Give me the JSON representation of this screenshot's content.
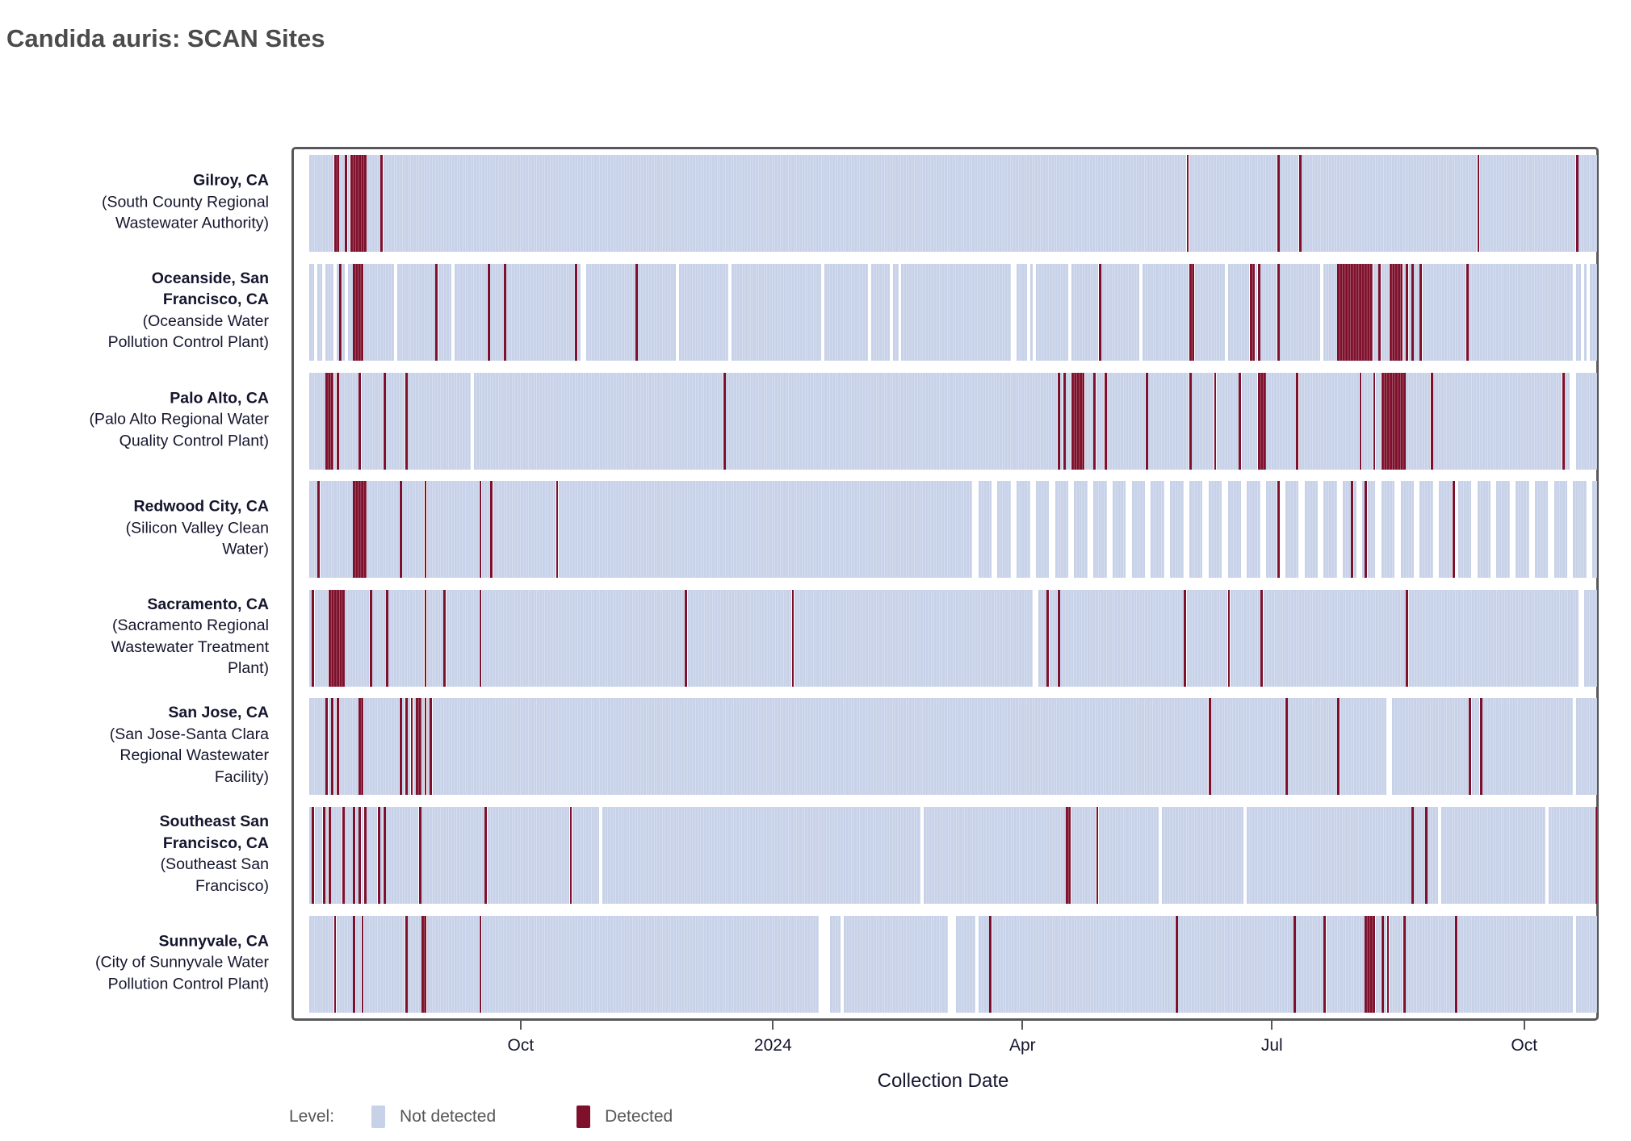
{
  "title": "Candida auris: SCAN Sites",
  "legend": {
    "label": "Level:",
    "items": [
      {
        "label": "Not detected",
        "color": "#c7d1e8"
      },
      {
        "label": "Detected",
        "color": "#7e102c"
      }
    ]
  },
  "colors": {
    "not_detected": "#c7d1e8",
    "detected": "#7e102c",
    "panel_border": "#58585c",
    "label_text": "#15152e",
    "title_text": "#4b4b4b",
    "legend_text": "#565656"
  },
  "chart_data": {
    "type": "heatmap",
    "title": "Candida auris: SCAN Sites",
    "xlabel": "Collection Date",
    "ylabel": "",
    "legend_position": "bottom",
    "x_axis": {
      "start_label_context": "daily samples, mid-July 2023 through late October 2024",
      "days_total": 470,
      "ticks": [
        {
          "label": "Oct",
          "day": 78
        },
        {
          "label": "2024",
          "day": 170
        },
        {
          "label": "Apr",
          "day": 261
        },
        {
          "label": "Jul",
          "day": 352
        },
        {
          "label": "Oct",
          "day": 444
        }
      ]
    },
    "levels": [
      "Not detected",
      "Detected"
    ],
    "sites": [
      {
        "city_lines": [
          "Gilroy, CA"
        ],
        "plant_lines": [
          "(South County Regional",
          "Wastewater Authority)"
        ],
        "detected": [
          9,
          10,
          13,
          [
            15,
            20
          ],
          26,
          320,
          353,
          361,
          426,
          462
        ],
        "missing": []
      },
      {
        "city_lines": [
          "Oceanside, San",
          "Francisco, CA"
        ],
        "plant_lines": [
          "(Oceanside Water",
          "Pollution Control Plant)"
        ],
        "detected": [
          11,
          [
            16,
            19
          ],
          46,
          65,
          71,
          97,
          119,
          288,
          [
            321,
            322
          ],
          343,
          344,
          346,
          353,
          [
            375,
            387
          ],
          390,
          [
            394,
            398
          ],
          400,
          402,
          405,
          422
        ],
        "missing": [
          2,
          5,
          9,
          13,
          31,
          52,
          [
            99,
            100
          ],
          134,
          153,
          187,
          204,
          212,
          215,
          [
            256,
            257
          ],
          262,
          264,
          277,
          303,
          334,
          369,
          461,
          464,
          466
        ]
      },
      {
        "city_lines": [
          "Palo Alto, CA"
        ],
        "plant_lines": [
          "(Palo Alto Regional Water",
          "Quality Control Plant)"
        ],
        "detected": [
          [
            6,
            8
          ],
          10,
          18,
          27,
          35,
          151,
          273,
          275,
          [
            278,
            282
          ],
          286,
          290,
          305,
          321,
          330,
          339,
          [
            346,
            348
          ],
          360,
          383,
          388,
          [
            391,
            399
          ],
          409,
          457
        ],
        "missing": [
          59,
          [
            460,
            461
          ]
        ]
      },
      {
        "city_lines": [
          "Redwood City, CA"
        ],
        "plant_lines": [
          "(Silicon Valley Clean",
          "Water)"
        ],
        "detected": [
          3,
          [
            16,
            20
          ],
          33,
          42,
          62,
          66,
          90,
          353,
          380,
          385,
          417
        ],
        "missing": [
          [
            242,
            243
          ],
          [
            249,
            250
          ],
          [
            256,
            257
          ],
          [
            263,
            264
          ],
          [
            270,
            271
          ],
          [
            277,
            278
          ],
          [
            284,
            285
          ],
          [
            291,
            292
          ],
          [
            298,
            299
          ],
          [
            305,
            306
          ],
          [
            312,
            313
          ],
          [
            319,
            320
          ],
          [
            326,
            327
          ],
          [
            333,
            334
          ],
          [
            340,
            341
          ],
          [
            347,
            348
          ],
          [
            354,
            355
          ],
          [
            361,
            362
          ],
          [
            368,
            369
          ],
          [
            375,
            376
          ],
          [
            382,
            383
          ],
          [
            389,
            390
          ],
          [
            396,
            397
          ],
          [
            403,
            404
          ],
          [
            410,
            411
          ],
          [
            417,
            418
          ],
          [
            424,
            425
          ],
          [
            431,
            432
          ],
          [
            438,
            439
          ],
          [
            445,
            446
          ],
          [
            452,
            453
          ],
          [
            459,
            460
          ],
          [
            466,
            467
          ]
        ]
      },
      {
        "city_lines": [
          "Sacramento, CA"
        ],
        "plant_lines": [
          "(Sacramento Regional",
          "Wastewater Treatment",
          "Plant)"
        ],
        "detected": [
          1,
          [
            7,
            12
          ],
          22,
          28,
          42,
          49,
          62,
          137,
          176,
          269,
          273,
          319,
          335,
          347,
          400
        ],
        "missing": [
          [
            264,
            265
          ],
          [
            463,
            464
          ]
        ]
      },
      {
        "city_lines": [
          "San Jose, CA"
        ],
        "plant_lines": [
          "(San Jose-Santa Clara",
          "Regional Wastewater",
          "Facility)"
        ],
        "detected": [
          6,
          8,
          10,
          [
            18,
            19
          ],
          33,
          35,
          37,
          39,
          40,
          42,
          44,
          328,
          356,
          375,
          423,
          427
        ],
        "missing": [
          [
            393,
            394
          ],
          461
        ]
      },
      {
        "city_lines": [
          "Southeast San",
          "Francisco, CA"
        ],
        "plant_lines": [
          "(Southeast San",
          "Francisco)"
        ],
        "detected": [
          1,
          5,
          7,
          12,
          16,
          18,
          20,
          25,
          27,
          40,
          64,
          95,
          [
            276,
            277
          ],
          287,
          402,
          407,
          469
        ],
        "missing": [
          106,
          223,
          310,
          341,
          412,
          451
        ]
      },
      {
        "city_lines": [
          "Sunnyvale, CA"
        ],
        "plant_lines": [
          "(City of Sunnyvale Water",
          "Pollution Control Plant)"
        ],
        "detected": [
          9,
          16,
          19,
          35,
          41,
          42,
          62,
          248,
          316,
          359,
          370,
          [
            385,
            388
          ],
          391,
          393,
          399,
          418
        ],
        "missing": [
          [
            186,
            189
          ],
          194,
          [
            233,
            235
          ],
          243,
          461
        ]
      }
    ]
  }
}
